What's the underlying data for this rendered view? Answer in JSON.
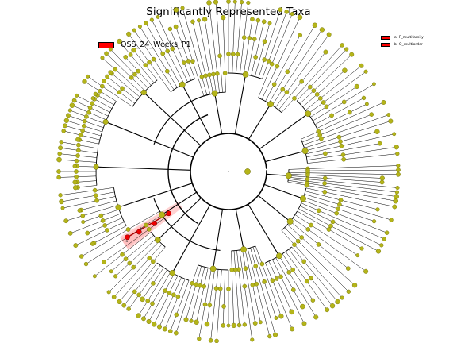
{
  "figure": {
    "title": "Significantly Represented Taxa"
  },
  "legend": {
    "main": {
      "label": "OSS_24_Weeks_P1",
      "color": "#ff0000"
    },
    "clades": [
      {
        "label": "a: F_multifamily",
        "color": "#ff0000"
      },
      {
        "label": "b: O_multiorder",
        "color": "#ff0000"
      }
    ]
  },
  "colors": {
    "node": "#b4b419",
    "node_edge": "#6a6a00",
    "highlight_node": "#ee0000",
    "highlight_band": "#ff9a9a",
    "branch": "#000000"
  },
  "cladogram": {
    "highlight_labels": [
      "a",
      "b"
    ],
    "leaf_count": 152,
    "highlighted_clade": "a: F_multifamily within b: O_multiorder"
  }
}
